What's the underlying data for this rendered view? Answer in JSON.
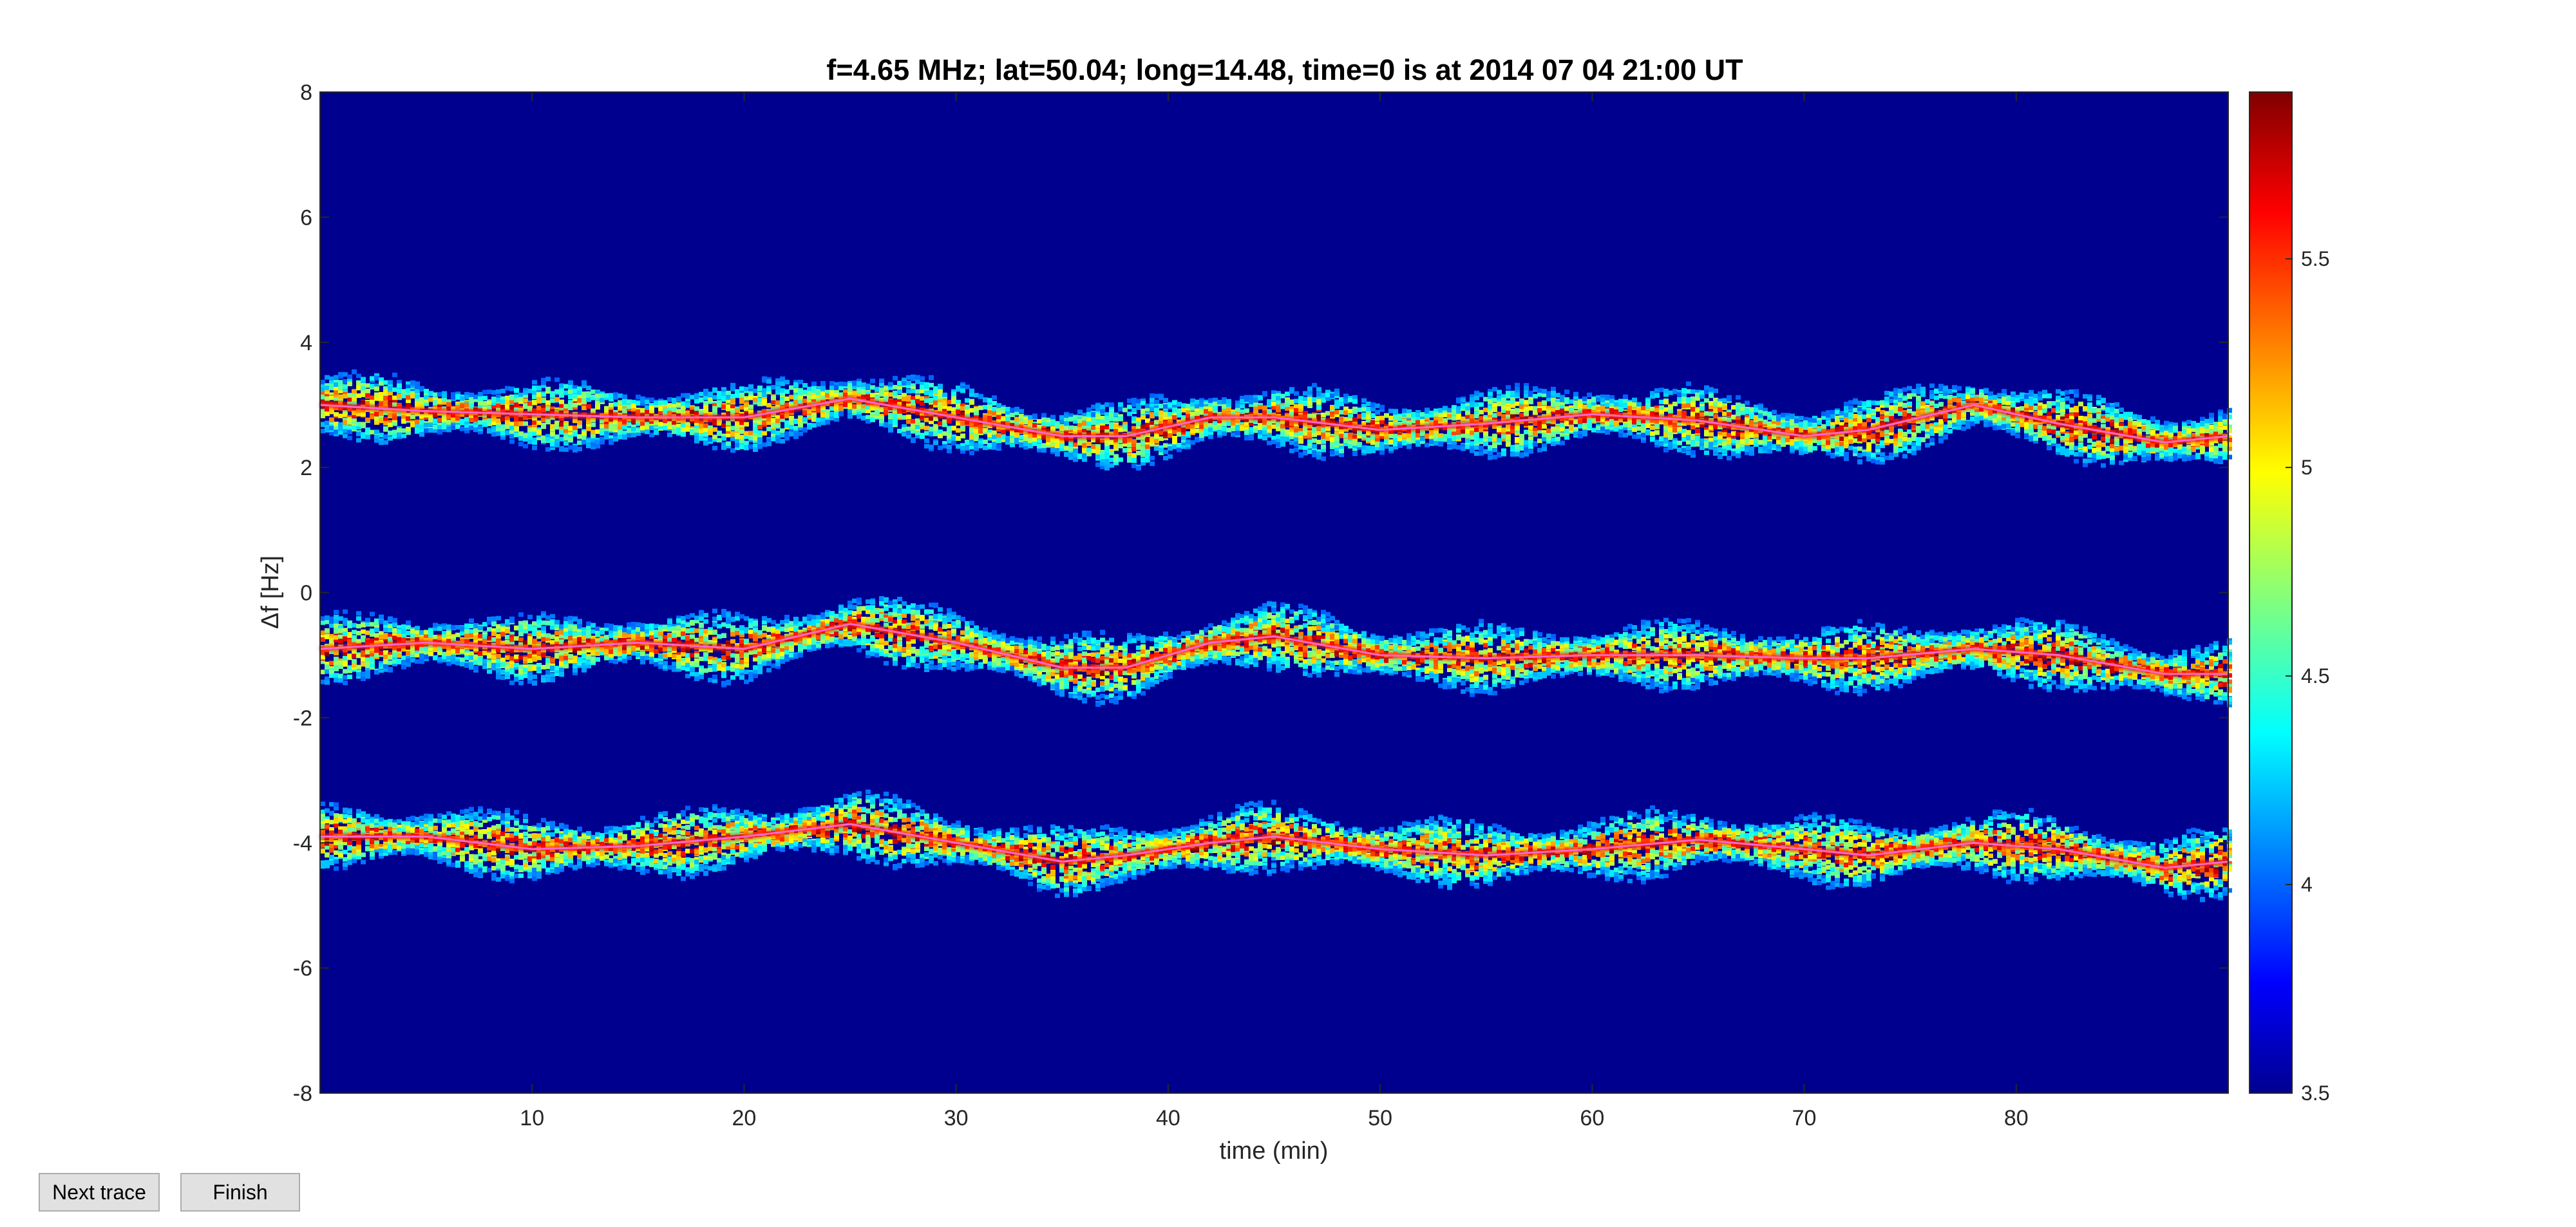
{
  "chart_data": {
    "type": "heatmap",
    "title": "f=4.65 MHz;  lat=50.04; long=14.48, time=0 is at 2014 07 04 21:00 UT",
    "xlabel": "time (min)",
    "ylabel": "Δf [Hz]",
    "xlim": [
      0,
      90
    ],
    "ylim": [
      -8,
      8
    ],
    "xticks": [
      10,
      20,
      30,
      40,
      50,
      60,
      70,
      80
    ],
    "yticks": [
      -8,
      -6,
      -4,
      -2,
      0,
      2,
      4,
      6,
      8
    ],
    "colorbar": {
      "clim": [
        3.5,
        5.9
      ],
      "ticks": [
        3.5,
        4,
        4.5,
        5,
        5.5
      ],
      "colormap": "jet"
    },
    "grid": false,
    "background_color": "#00008f",
    "trace_line_color": "#ff66cc",
    "series": [
      {
        "x": [
          0,
          5,
          10,
          15,
          20,
          25,
          30,
          35,
          38,
          42,
          45,
          50,
          55,
          60,
          65,
          70,
          73,
          78,
          82,
          87,
          90
        ],
        "y": [
          3.0,
          2.9,
          2.85,
          2.8,
          2.8,
          3.1,
          2.8,
          2.5,
          2.5,
          2.8,
          2.8,
          2.6,
          2.7,
          2.85,
          2.75,
          2.5,
          2.6,
          3.0,
          2.7,
          2.4,
          2.5
        ]
      },
      {
        "x": [
          0,
          5,
          10,
          15,
          20,
          25,
          30,
          35,
          38,
          42,
          45,
          50,
          55,
          60,
          65,
          70,
          73,
          78,
          82,
          87,
          90
        ],
        "y": [
          -0.9,
          -0.8,
          -0.9,
          -0.8,
          -0.9,
          -0.5,
          -0.8,
          -1.2,
          -1.2,
          -0.8,
          -0.7,
          -1.0,
          -1.05,
          -1.0,
          -1.0,
          -1.05,
          -1.05,
          -0.9,
          -1.0,
          -1.3,
          -1.3
        ]
      },
      {
        "x": [
          0,
          5,
          10,
          15,
          20,
          25,
          30,
          35,
          38,
          42,
          45,
          50,
          55,
          60,
          65,
          70,
          73,
          78,
          82,
          87,
          90
        ],
        "y": [
          -3.9,
          -3.9,
          -4.1,
          -4.05,
          -3.9,
          -3.7,
          -4.0,
          -4.3,
          -4.2,
          -4.0,
          -3.9,
          -4.1,
          -4.2,
          -4.1,
          -3.95,
          -4.1,
          -4.2,
          -4.0,
          -4.1,
          -4.4,
          -4.3
        ]
      }
    ]
  },
  "buttons": {
    "next_trace": "Next trace",
    "finish": "Finish"
  }
}
